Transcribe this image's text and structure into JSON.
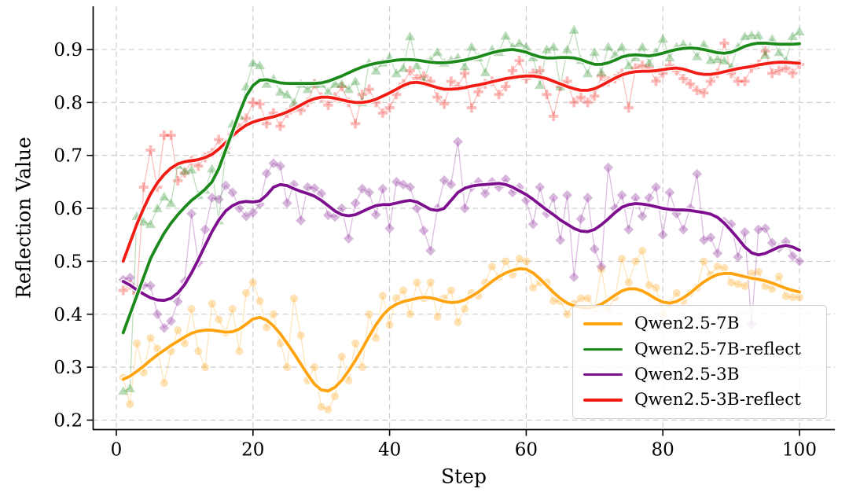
{
  "figure_bg": "#ffffff",
  "grid_color": "#c9c9c9",
  "spine_color": "#000000",
  "legend": {
    "position": "lower right"
  },
  "chart_data": {
    "type": "line",
    "title": "",
    "xlabel": "Step",
    "ylabel": "Reflection Value",
    "xlim": [
      -4,
      105
    ],
    "ylim": [
      0.18,
      0.98
    ],
    "x_ticks": [
      0,
      20,
      40,
      60,
      80,
      100
    ],
    "y_tick_labels": [
      "0.2",
      "0.3",
      "0.4",
      "0.5",
      "0.6",
      "0.7",
      "0.8",
      "0.9"
    ],
    "grid": true,
    "legend_position": "lower right",
    "steps_start": 1,
    "series": [
      {
        "name": "Qwen2.5-7B",
        "color": "#FFA30F",
        "marker": "circle",
        "smooth": [
          0.277,
          0.283,
          0.292,
          0.302,
          0.313,
          0.323,
          0.332,
          0.341,
          0.349,
          0.357,
          0.364,
          0.368,
          0.37,
          0.37,
          0.368,
          0.366,
          0.367,
          0.372,
          0.381,
          0.391,
          0.394,
          0.389,
          0.378,
          0.363,
          0.345,
          0.326,
          0.306,
          0.286,
          0.268,
          0.257,
          0.255,
          0.262,
          0.275,
          0.293,
          0.313,
          0.335,
          0.358,
          0.38,
          0.398,
          0.411,
          0.419,
          0.424,
          0.427,
          0.43,
          0.432,
          0.431,
          0.428,
          0.424,
          0.422,
          0.423,
          0.427,
          0.434,
          0.442,
          0.452,
          0.462,
          0.471,
          0.478,
          0.483,
          0.486,
          0.485,
          0.478,
          0.467,
          0.454,
          0.441,
          0.43,
          0.421,
          0.416,
          0.413,
          0.412,
          0.414,
          0.419,
          0.427,
          0.436,
          0.444,
          0.448,
          0.448,
          0.444,
          0.437,
          0.429,
          0.423,
          0.421,
          0.424,
          0.431,
          0.44,
          0.451,
          0.461,
          0.469,
          0.475,
          0.477,
          0.477,
          0.474,
          0.471,
          0.468,
          0.466,
          0.463,
          0.459,
          0.454,
          0.449,
          0.445,
          0.442
        ],
        "raw": [
          0.28,
          0.23,
          0.345,
          0.29,
          0.355,
          0.335,
          0.27,
          0.33,
          0.37,
          0.345,
          0.41,
          0.33,
          0.3,
          0.42,
          0.39,
          0.365,
          0.41,
          0.33,
          0.44,
          0.46,
          0.425,
          0.375,
          0.4,
          0.345,
          0.3,
          0.43,
          0.36,
          0.275,
          0.3,
          0.225,
          0.22,
          0.245,
          0.32,
          0.275,
          0.345,
          0.3,
          0.4,
          0.355,
          0.435,
          0.38,
          0.43,
          0.445,
          0.4,
          0.46,
          0.43,
          0.46,
          0.395,
          0.43,
          0.445,
          0.385,
          0.41,
          0.44,
          0.435,
          0.46,
          0.49,
          0.47,
          0.5,
          0.475,
          0.505,
          0.5,
          0.45,
          0.46,
          0.46,
          0.425,
          0.425,
          0.4,
          0.42,
          0.43,
          0.43,
          0.41,
          0.485,
          0.41,
          0.432,
          0.505,
          0.46,
          0.5,
          0.52,
          0.455,
          0.45,
          0.4,
          0.42,
          0.44,
          0.425,
          0.44,
          0.45,
          0.5,
          0.475,
          0.49,
          0.487,
          0.46,
          0.457,
          0.453,
          0.477,
          0.48,
          0.453,
          0.448,
          0.471,
          0.434,
          0.432,
          0.432
        ]
      },
      {
        "name": "Qwen2.5-7B-reflect",
        "color": "#1B8A1B",
        "marker": "triangle",
        "smooth": [
          0.365,
          0.4,
          0.435,
          0.47,
          0.505,
          0.53,
          0.553,
          0.572,
          0.588,
          0.602,
          0.615,
          0.625,
          0.636,
          0.65,
          0.675,
          0.71,
          0.745,
          0.78,
          0.812,
          0.832,
          0.842,
          0.843,
          0.84,
          0.837,
          0.836,
          0.836,
          0.836,
          0.836,
          0.836,
          0.837,
          0.84,
          0.845,
          0.85,
          0.856,
          0.862,
          0.867,
          0.871,
          0.874,
          0.876,
          0.878,
          0.88,
          0.881,
          0.881,
          0.88,
          0.878,
          0.876,
          0.875,
          0.875,
          0.876,
          0.878,
          0.88,
          0.883,
          0.886,
          0.89,
          0.894,
          0.897,
          0.899,
          0.9,
          0.898,
          0.895,
          0.89,
          0.886,
          0.884,
          0.884,
          0.885,
          0.885,
          0.884,
          0.881,
          0.876,
          0.872,
          0.872,
          0.875,
          0.88,
          0.886,
          0.889,
          0.89,
          0.889,
          0.888,
          0.89,
          0.893,
          0.897,
          0.9,
          0.902,
          0.903,
          0.902,
          0.9,
          0.897,
          0.894,
          0.893,
          0.895,
          0.9,
          0.906,
          0.91,
          0.912,
          0.912,
          0.911,
          0.91,
          0.91,
          0.91,
          0.911
        ],
        "raw": [
          0.255,
          0.26,
          0.585,
          0.575,
          0.57,
          0.6,
          0.622,
          0.61,
          0.682,
          0.67,
          0.673,
          0.625,
          0.635,
          0.675,
          0.577,
          0.71,
          0.76,
          0.775,
          0.83,
          0.875,
          0.87,
          0.835,
          0.845,
          0.82,
          0.815,
          0.8,
          0.835,
          0.825,
          0.835,
          0.835,
          0.82,
          0.835,
          0.835,
          0.825,
          0.84,
          0.8,
          0.875,
          0.86,
          0.875,
          0.885,
          0.855,
          0.865,
          0.925,
          0.87,
          0.84,
          0.88,
          0.895,
          0.875,
          0.88,
          0.885,
          0.868,
          0.905,
          0.885,
          0.857,
          0.9,
          0.895,
          0.926,
          0.905,
          0.912,
          0.905,
          0.885,
          0.833,
          0.9,
          0.905,
          0.83,
          0.9,
          0.937,
          0.88,
          0.855,
          0.895,
          0.857,
          0.905,
          0.89,
          0.905,
          0.87,
          0.885,
          0.905,
          0.875,
          0.895,
          0.92,
          0.885,
          0.905,
          0.91,
          0.905,
          0.887,
          0.91,
          0.88,
          0.882,
          0.879,
          0.867,
          0.905,
          0.925,
          0.927,
          0.927,
          0.89,
          0.92,
          0.895,
          0.879,
          0.925,
          0.934
        ]
      },
      {
        "name": "Qwen2.5-3B",
        "color": "#7D0F8F",
        "marker": "diamond",
        "smooth": [
          0.462,
          0.455,
          0.446,
          0.438,
          0.431,
          0.427,
          0.426,
          0.43,
          0.44,
          0.456,
          0.478,
          0.503,
          0.53,
          0.556,
          0.578,
          0.595,
          0.605,
          0.611,
          0.613,
          0.612,
          0.614,
          0.625,
          0.64,
          0.645,
          0.643,
          0.637,
          0.632,
          0.628,
          0.623,
          0.615,
          0.605,
          0.595,
          0.588,
          0.586,
          0.588,
          0.594,
          0.6,
          0.605,
          0.607,
          0.607,
          0.61,
          0.613,
          0.615,
          0.612,
          0.605,
          0.598,
          0.596,
          0.6,
          0.615,
          0.63,
          0.638,
          0.642,
          0.644,
          0.645,
          0.646,
          0.647,
          0.645,
          0.64,
          0.633,
          0.626,
          0.617,
          0.607,
          0.597,
          0.588,
          0.578,
          0.57,
          0.562,
          0.557,
          0.556,
          0.56,
          0.569,
          0.58,
          0.592,
          0.602,
          0.607,
          0.609,
          0.608,
          0.606,
          0.603,
          0.6,
          0.598,
          0.597,
          0.597,
          0.596,
          0.594,
          0.592,
          0.589,
          0.583,
          0.572,
          0.558,
          0.543,
          0.527,
          0.516,
          0.512,
          0.515,
          0.521,
          0.527,
          0.53,
          0.527,
          0.521
        ],
        "raw": [
          0.465,
          0.469,
          0.445,
          0.455,
          0.454,
          0.4,
          0.374,
          0.387,
          0.424,
          0.462,
          0.59,
          0.497,
          0.56,
          0.62,
          0.617,
          0.643,
          0.63,
          0.6,
          0.585,
          0.592,
          0.608,
          0.666,
          0.685,
          0.68,
          0.61,
          0.645,
          0.577,
          0.64,
          0.638,
          0.628,
          0.587,
          0.584,
          0.6,
          0.543,
          0.61,
          0.637,
          0.63,
          0.588,
          0.637,
          0.562,
          0.65,
          0.645,
          0.64,
          0.6,
          0.558,
          0.52,
          0.6,
          0.653,
          0.645,
          0.726,
          0.6,
          0.64,
          0.65,
          0.628,
          0.65,
          0.64,
          0.655,
          0.63,
          0.64,
          0.615,
          0.57,
          0.64,
          0.59,
          0.62,
          0.54,
          0.625,
          0.47,
          0.58,
          0.62,
          0.523,
          0.49,
          0.677,
          0.6,
          0.625,
          0.56,
          0.62,
          0.585,
          0.62,
          0.64,
          0.55,
          0.63,
          0.59,
          0.56,
          0.6,
          0.665,
          0.54,
          0.545,
          0.515,
          0.575,
          0.57,
          0.508,
          0.555,
          0.381,
          0.56,
          0.562,
          0.535,
          0.525,
          0.537,
          0.51,
          0.5
        ]
      },
      {
        "name": "Qwen2.5-3B-reflect",
        "color": "#F21C14",
        "marker": "plus",
        "smooth": [
          0.5,
          0.535,
          0.57,
          0.6,
          0.627,
          0.648,
          0.664,
          0.676,
          0.684,
          0.688,
          0.69,
          0.692,
          0.696,
          0.702,
          0.712,
          0.724,
          0.737,
          0.748,
          0.757,
          0.763,
          0.767,
          0.77,
          0.773,
          0.777,
          0.782,
          0.788,
          0.795,
          0.802,
          0.807,
          0.81,
          0.81,
          0.808,
          0.805,
          0.802,
          0.8,
          0.8,
          0.802,
          0.806,
          0.812,
          0.818,
          0.825,
          0.832,
          0.837,
          0.838,
          0.836,
          0.832,
          0.828,
          0.825,
          0.825,
          0.826,
          0.828,
          0.831,
          0.833,
          0.836,
          0.839,
          0.842,
          0.845,
          0.847,
          0.849,
          0.85,
          0.85,
          0.848,
          0.845,
          0.84,
          0.835,
          0.83,
          0.826,
          0.823,
          0.823,
          0.826,
          0.832,
          0.839,
          0.846,
          0.852,
          0.856,
          0.858,
          0.859,
          0.859,
          0.86,
          0.862,
          0.864,
          0.865,
          0.863,
          0.859,
          0.855,
          0.853,
          0.853,
          0.855,
          0.858,
          0.861,
          0.864,
          0.866,
          0.868,
          0.871,
          0.873,
          0.875,
          0.876,
          0.876,
          0.875,
          0.874
        ],
        "raw": [
          0.445,
          0.455,
          0.44,
          0.64,
          0.71,
          0.64,
          0.738,
          0.738,
          0.652,
          0.667,
          0.69,
          0.68,
          0.696,
          0.705,
          0.73,
          0.714,
          0.74,
          0.752,
          0.77,
          0.8,
          0.797,
          0.76,
          0.78,
          0.755,
          0.78,
          0.79,
          0.785,
          0.8,
          0.835,
          0.81,
          0.795,
          0.81,
          0.83,
          0.8,
          0.76,
          0.815,
          0.825,
          0.8,
          0.78,
          0.79,
          0.815,
          0.835,
          0.86,
          0.845,
          0.85,
          0.84,
          0.81,
          0.797,
          0.84,
          0.83,
          0.855,
          0.79,
          0.82,
          0.835,
          0.84,
          0.815,
          0.83,
          0.86,
          0.879,
          0.845,
          0.855,
          0.86,
          0.815,
          0.774,
          0.83,
          0.84,
          0.8,
          0.81,
          0.8,
          0.812,
          0.85,
          0.84,
          0.845,
          0.855,
          0.79,
          0.865,
          0.87,
          0.865,
          0.84,
          0.855,
          0.87,
          0.86,
          0.845,
          0.835,
          0.823,
          0.818,
          0.84,
          0.855,
          0.912,
          0.855,
          0.84,
          0.84,
          0.865,
          0.872,
          0.897,
          0.855,
          0.86,
          0.865,
          0.855,
          0.872
        ]
      }
    ]
  }
}
